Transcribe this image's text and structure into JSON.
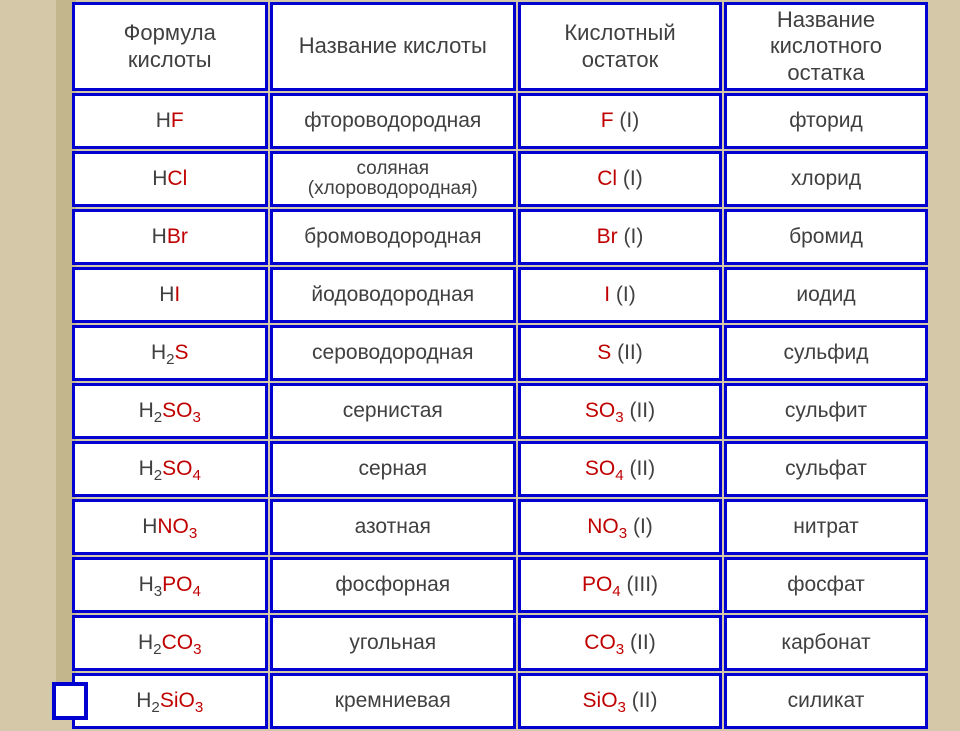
{
  "columns": [
    "Формула кислоты",
    "Название кислоты",
    "Кислотный остаток",
    "Название кислотного остатка"
  ],
  "rows": [
    {
      "formula_h": "H",
      "formula_anion": "F",
      "formula_sub": "",
      "name": "фтороводородная",
      "res_anion": "F",
      "res_sub": "",
      "res_val": "(I)",
      "res_name": "фторид"
    },
    {
      "formula_h": "H",
      "formula_anion": "Cl",
      "formula_sub": "",
      "name": "соляная (хлороводородная)",
      "res_anion": "Cl",
      "res_sub": "",
      "res_val": "(I)",
      "res_name": "хлорид"
    },
    {
      "formula_h": "H",
      "formula_anion": "Br",
      "formula_sub": "",
      "name": "бромоводородная",
      "res_anion": "Br",
      "res_sub": "",
      "res_val": "(I)",
      "res_name": "бромид"
    },
    {
      "formula_h": "H",
      "formula_anion": "I",
      "formula_sub": "",
      "name": "йодоводородная",
      "res_anion": "I",
      "res_sub": "",
      "res_val": "(I)",
      "res_name": "иодид"
    },
    {
      "formula_h": "H",
      "formula_hsub": "2",
      "formula_anion": "S",
      "formula_sub": "",
      "name": "сероводородная",
      "res_anion": "S",
      "res_sub": "",
      "res_val": "(II)",
      "res_name": "сульфид"
    },
    {
      "formula_h": "H",
      "formula_hsub": "2",
      "formula_anion": "SO",
      "formula_sub": "3",
      "name": "сернистая",
      "res_anion": "SO",
      "res_sub": "3",
      "res_val": "(II)",
      "res_name": "сульфит"
    },
    {
      "formula_h": "H",
      "formula_hsub": "2",
      "formula_anion": "SO",
      "formula_sub": "4",
      "name": "серная",
      "res_anion": "SO",
      "res_sub": "4",
      "res_val": "(II)",
      "res_name": "сульфат"
    },
    {
      "formula_h": "H",
      "formula_anion": "NO",
      "formula_sub": "3",
      "name": "азотная",
      "res_anion": "NO",
      "res_sub": "3",
      "res_val": "(I)",
      "res_name": "нитрат"
    },
    {
      "formula_h": "H",
      "formula_hsub": "3",
      "formula_anion": "PO",
      "formula_sub": "4",
      "name": "фосфорная",
      "res_anion": "PO",
      "res_sub": "4",
      "res_val": "(III)",
      "res_name": "фосфат"
    },
    {
      "formula_h": "H",
      "formula_hsub": "2",
      "formula_anion": "CO",
      "formula_sub": "3",
      "name": "угольная",
      "res_anion": "CO",
      "res_sub": "3",
      "res_val": "(II)",
      "res_name": "карбонат"
    },
    {
      "formula_h": "H",
      "formula_hsub": "2",
      "formula_anion": "SiO",
      "formula_sub": "3",
      "name": "кремниевая",
      "res_anion": "SiO",
      "res_sub": "3",
      "res_val": "(II)",
      "res_name": "силикат"
    }
  ],
  "style": {
    "border_color": "#0000d0",
    "cell_bg": "#ffffff",
    "page_bg": "#d4c8a8",
    "stripe_bg": "#c4b68c",
    "text_color": "#404040",
    "anion_color": "#c00000",
    "font_size_cell": 21,
    "font_size_header": 22
  }
}
